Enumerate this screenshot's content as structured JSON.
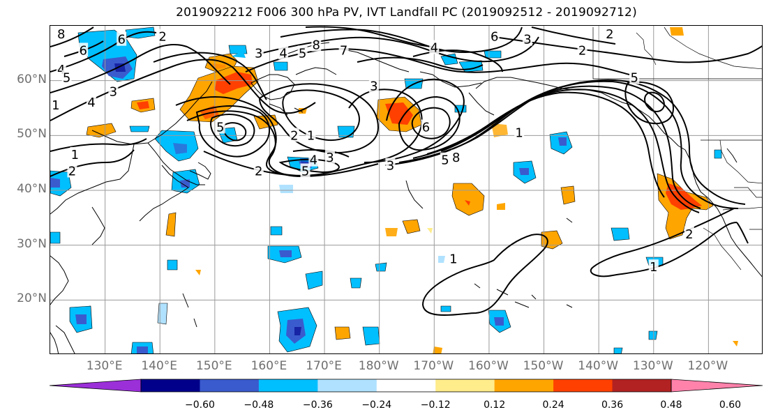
{
  "title": "2019092212 F006 300 hPa PV, IVT Landfall PC (2019092512 - 2019092712)",
  "map": {
    "lat_range": [
      10,
      70
    ],
    "lon_range": [
      120,
      250
    ],
    "grid": true,
    "gridlines_lat": [
      20,
      30,
      40,
      50,
      60
    ],
    "gridlines_lon": [
      130,
      140,
      150,
      160,
      170,
      180,
      190,
      200,
      210,
      220,
      230,
      240
    ],
    "lat_labels": [
      "60°N",
      "50°N",
      "40°N",
      "30°N",
      "20°N"
    ],
    "lat_label_values": [
      60,
      50,
      40,
      30,
      20
    ],
    "lon_labels": [
      "130°E",
      "140°E",
      "150°E",
      "160°E",
      "170°E",
      "180°W",
      "170°W",
      "160°W",
      "150°W",
      "140°W",
      "130°W",
      "120°W"
    ],
    "lon_label_values": [
      130,
      140,
      150,
      160,
      170,
      180,
      190,
      200,
      210,
      220,
      230,
      240
    ]
  },
  "colorbar": {
    "labels": [
      "−0.60",
      "−0.48",
      "−0.36",
      "−0.24",
      "−0.12",
      "0.12",
      "0.24",
      "0.36",
      "0.48",
      "0.60"
    ],
    "values": [
      -0.6,
      -0.48,
      -0.36,
      -0.24,
      -0.12,
      0.12,
      0.24,
      0.36,
      0.48,
      0.6
    ],
    "colors": [
      "#9b30d9",
      "#00008b",
      "#3a5bcd",
      "#00bfff",
      "#b0e2ff",
      "#ffffff",
      "#ffec8b",
      "#ffa500",
      "#ff4000",
      "#b22222",
      "#ff82ab"
    ],
    "extend": "both"
  },
  "contour_labels": [
    {
      "text": "8",
      "lon": 122,
      "lat": 68.5
    },
    {
      "text": "6",
      "lon": 126,
      "lat": 65.5
    },
    {
      "text": "4",
      "lon": 122,
      "lat": 62
    },
    {
      "text": "5",
      "lon": 123,
      "lat": 60.5
    },
    {
      "text": "1",
      "lon": 121,
      "lat": 55.5
    },
    {
      "text": "4",
      "lon": 127.5,
      "lat": 56
    },
    {
      "text": "3",
      "lon": 131.5,
      "lat": 58
    },
    {
      "text": "6",
      "lon": 133,
      "lat": 67.5
    },
    {
      "text": "2",
      "lon": 140.5,
      "lat": 68
    },
    {
      "text": "3",
      "lon": 158,
      "lat": 65
    },
    {
      "text": "4",
      "lon": 162.5,
      "lat": 65
    },
    {
      "text": "5",
      "lon": 166,
      "lat": 65
    },
    {
      "text": "8",
      "lon": 168.5,
      "lat": 66.5
    },
    {
      "text": "7",
      "lon": 173.5,
      "lat": 65.5
    },
    {
      "text": "3",
      "lon": 179,
      "lat": 59
    },
    {
      "text": "4",
      "lon": 190,
      "lat": 66
    },
    {
      "text": "6",
      "lon": 201,
      "lat": 68
    },
    {
      "text": "3",
      "lon": 207,
      "lat": 67.5
    },
    {
      "text": "2",
      "lon": 217,
      "lat": 65.5
    },
    {
      "text": "2",
      "lon": 222,
      "lat": 68.5
    },
    {
      "text": "5",
      "lon": 226.5,
      "lat": 60.5
    },
    {
      "text": "5",
      "lon": 151,
      "lat": 51.5
    },
    {
      "text": "2",
      "lon": 164.5,
      "lat": 50
    },
    {
      "text": "1",
      "lon": 167.5,
      "lat": 50
    },
    {
      "text": "4",
      "lon": 168,
      "lat": 45.5
    },
    {
      "text": "3",
      "lon": 171,
      "lat": 46
    },
    {
      "text": "5",
      "lon": 166.5,
      "lat": 43.5
    },
    {
      "text": "2",
      "lon": 158,
      "lat": 43.5
    },
    {
      "text": "3",
      "lon": 182,
      "lat": 44.5
    },
    {
      "text": "6",
      "lon": 188.5,
      "lat": 51.5
    },
    {
      "text": "5",
      "lon": 192,
      "lat": 45.5
    },
    {
      "text": "8",
      "lon": 194,
      "lat": 46
    },
    {
      "text": "1",
      "lon": 205.5,
      "lat": 50.5
    },
    {
      "text": "1",
      "lon": 124.5,
      "lat": 46.5
    },
    {
      "text": "2",
      "lon": 124,
      "lat": 43.5
    },
    {
      "text": "1",
      "lon": 193.5,
      "lat": 27.5
    },
    {
      "text": "1",
      "lon": 230,
      "lat": 26
    },
    {
      "text": "2",
      "lon": 236.5,
      "lat": 32
    }
  ],
  "icons": {
    "colorbar_extend_low": "triangle-left",
    "colorbar_extend_high": "triangle-right"
  }
}
